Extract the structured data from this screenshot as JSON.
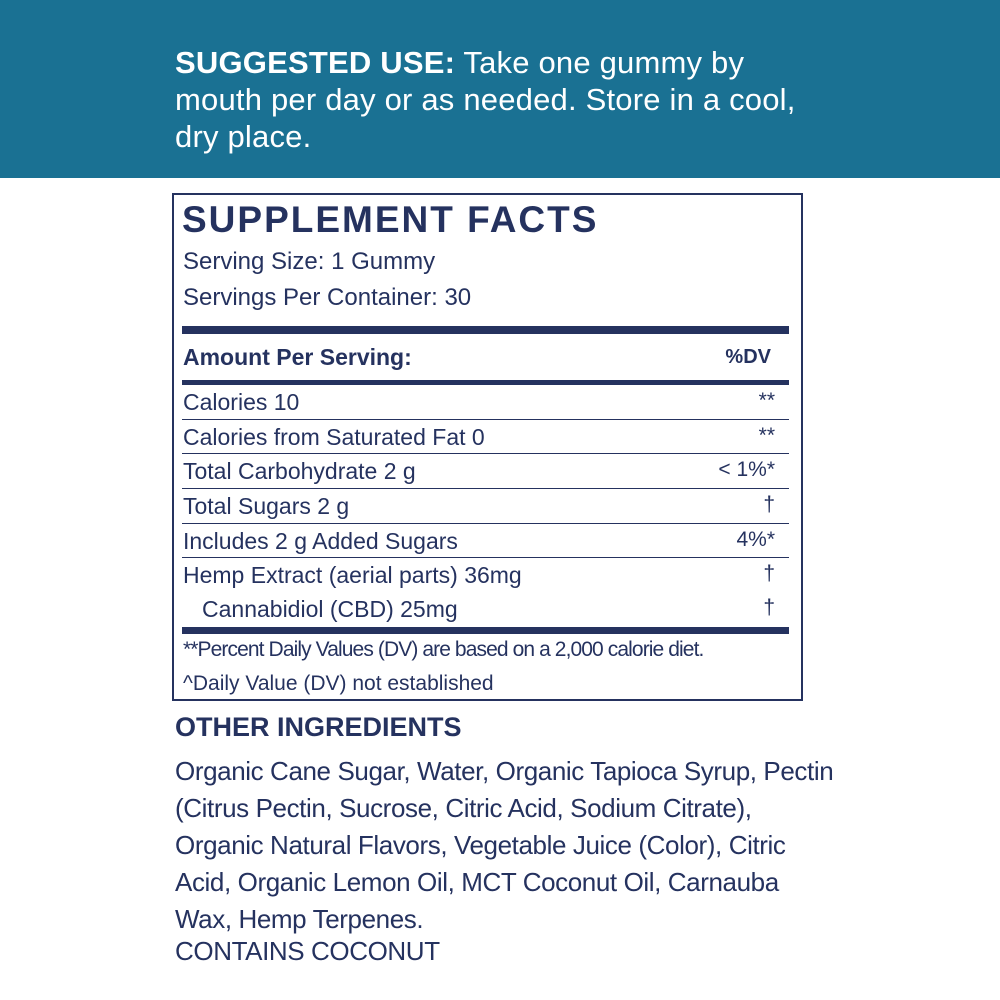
{
  "banner": {
    "label": "SUGGESTED USE:",
    "text": " Take one gummy by mouth per day or as needed.  Store in a cool, dry place.",
    "background": "#1a7193"
  },
  "facts": {
    "title": "SUPPLEMENT FACTS",
    "serving_size": "Serving Size: 1 Gummy",
    "servings_per_container": "Servings Per Container: 30",
    "amount_per_serving": "Amount Per Serving:",
    "dv_header": "%DV",
    "rows": [
      {
        "name": "Calories  10",
        "dv": "**"
      },
      {
        "name": "Calories from Saturated Fat  0",
        "dv": "**"
      },
      {
        "name": "Total Carbohydrate  2 g",
        "dv": "< 1%*"
      },
      {
        "name": "Total Sugars  2 g",
        "dv": "†"
      },
      {
        "name": "Includes 2 g Added Sugars",
        "dv": "4%*"
      },
      {
        "name": "Hemp Extract (aerial parts) 36mg",
        "dv": "†"
      },
      {
        "name": "Cannabidiol (CBD) 25mg",
        "dv": "†"
      }
    ],
    "footnote_1": "**Percent Daily Values (DV) are based on a 2,000 calorie diet.",
    "footnote_2": "^Daily Value (DV) not established",
    "color": "#25325f"
  },
  "other_ingredients": {
    "title": "OTHER INGREDIENTS",
    "text": "Organic Cane Sugar, Water, Organic Tapioca Syrup, Pectin (Citrus Pectin, Sucrose, Citric Acid, Sodium Citrate), Organic Natural Flavors, Vegetable Juice (Color), Citric Acid, Organic Lemon Oil, MCT Coconut Oil, Carnauba Wax, Hemp Terpenes.",
    "contains": "CONTAINS COCONUT"
  }
}
